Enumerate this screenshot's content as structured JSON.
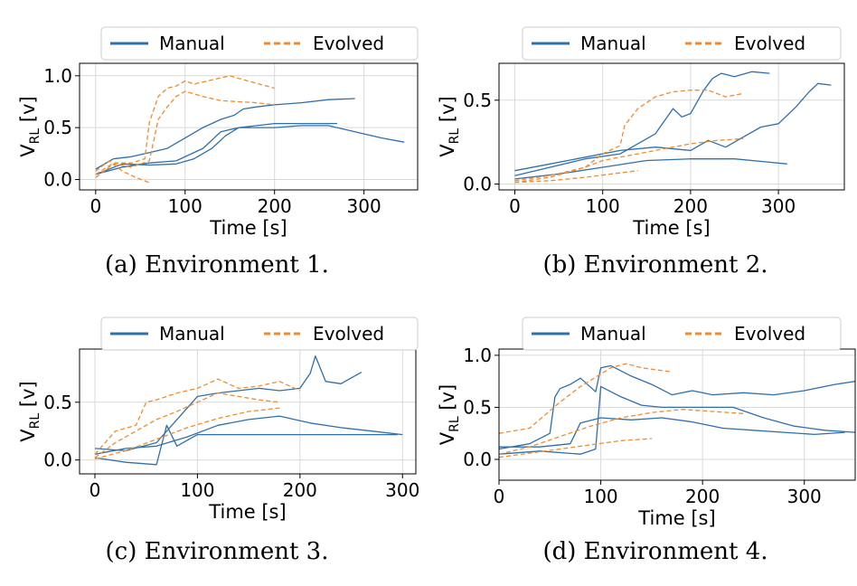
{
  "legend_labels": {
    "manual": "Manual",
    "evolved": "Evolved"
  },
  "colors": {
    "manual": "#2f6fae",
    "evolved": "#f58a2a"
  },
  "chart_data": [
    {
      "type": "line",
      "caption": "(a) Environment 1.",
      "xlabel": "Time [s]",
      "ylabel": "V_RL [v]",
      "xlim": [
        -18,
        360
      ],
      "ylim": [
        -0.1,
        1.12
      ],
      "xticks": [
        0,
        100,
        200,
        300
      ],
      "yticks": [
        0.0,
        0.5,
        1.0
      ],
      "yticklabels": [
        "0.0",
        "0.5",
        "1.0"
      ],
      "grid": true,
      "legend": "top-center",
      "series": [
        {
          "group": "manual",
          "x": [
            0,
            20,
            40,
            60,
            80,
            100,
            120,
            140,
            155,
            165,
            180,
            200,
            230,
            260,
            290
          ],
          "y": [
            0.1,
            0.2,
            0.22,
            0.26,
            0.3,
            0.4,
            0.5,
            0.58,
            0.62,
            0.68,
            0.7,
            0.72,
            0.74,
            0.77,
            0.78
          ]
        },
        {
          "group": "manual",
          "x": [
            0,
            30,
            60,
            90,
            120,
            140,
            160,
            180,
            200,
            230,
            260,
            290,
            320,
            345
          ],
          "y": [
            0.05,
            0.12,
            0.16,
            0.18,
            0.3,
            0.46,
            0.5,
            0.5,
            0.5,
            0.52,
            0.52,
            0.46,
            0.4,
            0.36
          ]
        },
        {
          "group": "manual",
          "x": [
            0,
            30,
            60,
            90,
            110,
            130,
            145,
            160,
            180,
            200,
            230,
            270
          ],
          "y": [
            0.05,
            0.15,
            0.14,
            0.15,
            0.2,
            0.3,
            0.42,
            0.5,
            0.52,
            0.54,
            0.54,
            0.54
          ]
        },
        {
          "group": "evolved",
          "x": [
            0,
            20,
            40,
            55,
            60,
            70,
            80,
            90,
            100,
            110,
            130,
            150,
            170,
            200
          ],
          "y": [
            0.05,
            0.16,
            0.16,
            0.2,
            0.55,
            0.8,
            0.88,
            0.9,
            0.95,
            0.92,
            0.96,
            1.0,
            0.95,
            0.88
          ]
        },
        {
          "group": "evolved",
          "x": [
            0,
            20,
            40,
            60,
            70,
            80,
            90,
            100,
            120,
            140,
            160,
            180,
            200
          ],
          "y": [
            0.02,
            0.15,
            0.12,
            0.18,
            0.58,
            0.7,
            0.8,
            0.85,
            0.8,
            0.76,
            0.75,
            0.74,
            0.72
          ]
        },
        {
          "group": "evolved",
          "x": [
            0,
            15,
            30,
            45,
            60
          ],
          "y": [
            0.08,
            0.18,
            0.08,
            0.02,
            -0.03
          ]
        }
      ]
    },
    {
      "type": "line",
      "caption": "(b) Environment 2.",
      "xlabel": "Time [s]",
      "ylabel": "V_RL [v]",
      "xlim": [
        -18,
        375
      ],
      "ylim": [
        -0.035,
        0.72
      ],
      "xticks": [
        0,
        100,
        200,
        300
      ],
      "yticks": [
        0.0,
        0.5
      ],
      "yticklabels": [
        "0.0",
        "0.5"
      ],
      "grid": true,
      "legend": "top-center",
      "series": [
        {
          "group": "manual",
          "x": [
            0,
            40,
            80,
            120,
            160,
            180,
            190,
            200,
            215,
            225,
            235,
            250,
            270,
            290
          ],
          "y": [
            0.05,
            0.1,
            0.15,
            0.18,
            0.3,
            0.45,
            0.4,
            0.42,
            0.56,
            0.63,
            0.66,
            0.64,
            0.67,
            0.66
          ]
        },
        {
          "group": "manual",
          "x": [
            0,
            40,
            80,
            120,
            160,
            200,
            220,
            240,
            260,
            280,
            300,
            320,
            335,
            345,
            360
          ],
          "y": [
            0.08,
            0.12,
            0.16,
            0.2,
            0.22,
            0.2,
            0.26,
            0.22,
            0.28,
            0.34,
            0.36,
            0.46,
            0.55,
            0.6,
            0.59
          ]
        },
        {
          "group": "manual",
          "x": [
            0,
            50,
            100,
            150,
            200,
            250,
            290,
            310
          ],
          "y": [
            0.03,
            0.06,
            0.1,
            0.14,
            0.15,
            0.15,
            0.13,
            0.12
          ]
        },
        {
          "group": "evolved",
          "x": [
            0,
            40,
            80,
            100,
            120,
            125,
            140,
            160,
            180,
            200,
            220,
            240,
            260
          ],
          "y": [
            0.01,
            0.04,
            0.1,
            0.18,
            0.23,
            0.35,
            0.45,
            0.52,
            0.55,
            0.56,
            0.56,
            0.52,
            0.54
          ]
        },
        {
          "group": "evolved",
          "x": [
            0,
            40,
            80,
            100,
            120,
            140,
            160,
            180,
            200,
            230,
            260
          ],
          "y": [
            0.02,
            0.05,
            0.1,
            0.14,
            0.16,
            0.18,
            0.2,
            0.22,
            0.24,
            0.26,
            0.27
          ]
        },
        {
          "group": "evolved",
          "x": [
            0,
            40,
            80,
            110,
            140
          ],
          "y": [
            0.01,
            0.02,
            0.04,
            0.06,
            0.08
          ]
        }
      ]
    },
    {
      "type": "line",
      "caption": "(c) Environment 3.",
      "xlabel": "Time [s]",
      "ylabel": "V_RL [v]",
      "xlim": [
        -15,
        313
      ],
      "ylim": [
        -0.12,
        0.96
      ],
      "xticks": [
        0,
        100,
        200,
        300
      ],
      "yticks": [
        0.0,
        0.5
      ],
      "yticklabels": [
        "0.0",
        "0.5"
      ],
      "grid": true,
      "legend": "top-center",
      "series": [
        {
          "group": "manual",
          "x": [
            0,
            30,
            60,
            75,
            90,
            100,
            120,
            140,
            160,
            180,
            200,
            210,
            215,
            225,
            240,
            260
          ],
          "y": [
            0.1,
            0.08,
            0.15,
            0.3,
            0.45,
            0.55,
            0.58,
            0.6,
            0.62,
            0.6,
            0.62,
            0.75,
            0.9,
            0.68,
            0.66,
            0.76
          ]
        },
        {
          "group": "manual",
          "x": [
            0,
            30,
            60,
            70,
            80,
            100,
            120,
            140,
            160,
            180,
            200,
            230,
            260,
            295
          ],
          "y": [
            0.02,
            -0.02,
            -0.04,
            0.3,
            0.12,
            0.22,
            0.22,
            0.22,
            0.22,
            0.22,
            0.22,
            0.22,
            0.22,
            0.22
          ]
        },
        {
          "group": "manual",
          "x": [
            0,
            30,
            60,
            90,
            120,
            150,
            180,
            210,
            240,
            270,
            300
          ],
          "y": [
            0.05,
            0.1,
            0.12,
            0.2,
            0.3,
            0.35,
            0.38,
            0.32,
            0.28,
            0.25,
            0.22
          ]
        },
        {
          "group": "evolved",
          "x": [
            0,
            20,
            40,
            50,
            60,
            80,
            100,
            120,
            140,
            160,
            180,
            200
          ],
          "y": [
            0.05,
            0.25,
            0.3,
            0.5,
            0.52,
            0.58,
            0.62,
            0.7,
            0.62,
            0.64,
            0.68,
            0.6
          ]
        },
        {
          "group": "evolved",
          "x": [
            0,
            20,
            40,
            60,
            80,
            100,
            120,
            140,
            160,
            180
          ],
          "y": [
            0.02,
            0.15,
            0.25,
            0.35,
            0.42,
            0.5,
            0.58,
            0.55,
            0.52,
            0.5
          ]
        },
        {
          "group": "evolved",
          "x": [
            0,
            30,
            60,
            90,
            120,
            150,
            180
          ],
          "y": [
            0.01,
            0.08,
            0.18,
            0.28,
            0.36,
            0.42,
            0.45
          ]
        }
      ]
    },
    {
      "type": "line",
      "caption": "(d) Environment 4.",
      "xlabel": "Time [s]",
      "ylabel": "V_RL [v]",
      "xlim": [
        0,
        350
      ],
      "ylim": [
        -0.2,
        1.06
      ],
      "xticks": [
        0,
        100,
        200,
        300
      ],
      "yticks": [
        0.0,
        0.5,
        1.0
      ],
      "yticklabels": [
        "0.0",
        "0.5",
        "1.0"
      ],
      "grid": true,
      "legend": "top-center",
      "series": [
        {
          "group": "manual",
          "x": [
            0,
            30,
            50,
            55,
            60,
            70,
            80,
            95,
            100,
            110,
            130,
            150,
            170,
            190,
            210,
            240,
            270,
            300,
            330,
            350
          ],
          "y": [
            0.1,
            0.15,
            0.25,
            0.6,
            0.68,
            0.72,
            0.78,
            0.65,
            0.88,
            0.9,
            0.8,
            0.72,
            0.62,
            0.66,
            0.62,
            0.64,
            0.62,
            0.66,
            0.72,
            0.75
          ]
        },
        {
          "group": "manual",
          "x": [
            0,
            40,
            80,
            95,
            100,
            120,
            140,
            160,
            180,
            200,
            230,
            260,
            290,
            320,
            350
          ],
          "y": [
            0.05,
            0.08,
            0.05,
            0.1,
            0.7,
            0.6,
            0.52,
            0.5,
            0.5,
            0.5,
            0.5,
            0.4,
            0.32,
            0.28,
            0.26
          ]
        },
        {
          "group": "manual",
          "x": [
            0,
            40,
            70,
            80,
            100,
            130,
            160,
            190,
            220,
            250,
            280,
            310,
            340
          ],
          "y": [
            0.12,
            0.12,
            0.15,
            0.35,
            0.4,
            0.38,
            0.4,
            0.36,
            0.3,
            0.28,
            0.26,
            0.24,
            0.26
          ]
        },
        {
          "group": "evolved",
          "x": [
            0,
            30,
            60,
            80,
            100,
            110,
            125,
            140,
            155,
            170
          ],
          "y": [
            0.25,
            0.3,
            0.55,
            0.7,
            0.82,
            0.88,
            0.92,
            0.88,
            0.86,
            0.84
          ]
        },
        {
          "group": "evolved",
          "x": [
            0,
            30,
            60,
            90,
            120,
            150,
            180,
            210,
            240
          ],
          "y": [
            0.05,
            0.12,
            0.22,
            0.32,
            0.4,
            0.45,
            0.48,
            0.46,
            0.44
          ]
        },
        {
          "group": "evolved",
          "x": [
            0,
            30,
            60,
            90,
            120,
            150
          ],
          "y": [
            0.02,
            0.06,
            0.1,
            0.14,
            0.18,
            0.2
          ]
        }
      ]
    }
  ]
}
